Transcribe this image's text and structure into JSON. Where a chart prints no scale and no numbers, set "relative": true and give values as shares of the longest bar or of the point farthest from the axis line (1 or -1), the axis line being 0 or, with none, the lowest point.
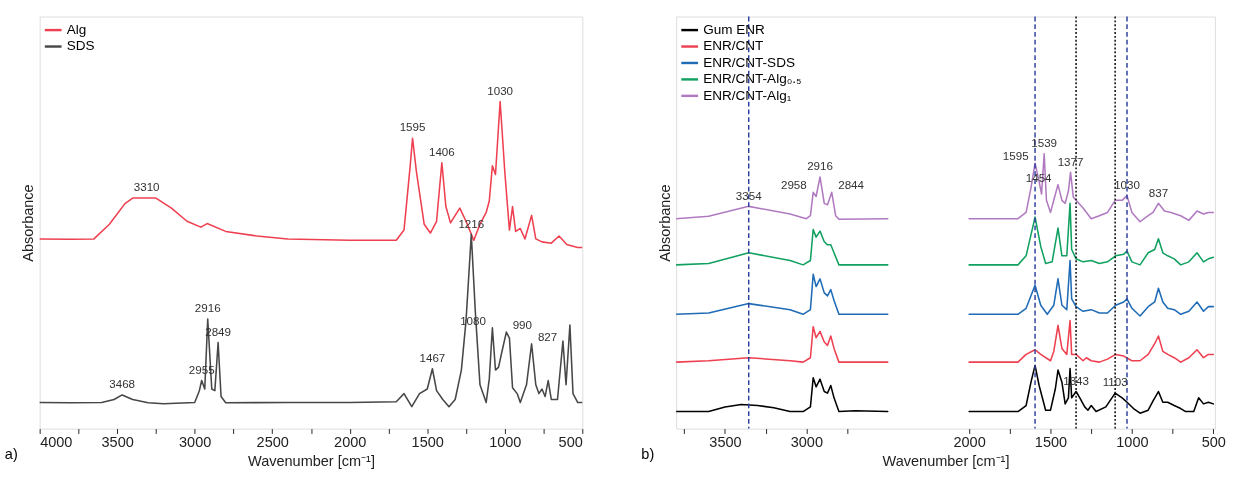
{
  "chart_data": [
    {
      "type": "line",
      "relative": true,
      "xlabel": "Wavenumber [cm⁻¹]",
      "ylabel": "Absorbance",
      "xlim": [
        4000,
        500
      ],
      "xticks": [
        4000,
        {
          "value": 3750,
          "label": null
        },
        3500,
        {
          "value": 3250,
          "label": null
        },
        3000,
        {
          "value": 2750,
          "label": null
        },
        2500,
        {
          "value": 2250,
          "label": null
        },
        2000,
        {
          "value": 1750,
          "label": null
        },
        1500,
        {
          "value": 1250,
          "label": null
        },
        1000,
        {
          "value": 750,
          "label": null
        },
        500
      ],
      "grid": false,
      "legend": "top left",
      "series": [
        {
          "name": "Alg",
          "color": "#ee4050",
          "x": [
            4000,
            3800,
            3650,
            3550,
            3450,
            3400,
            3250,
            3150,
            3050,
            2960,
            2920,
            2800,
            2600,
            2400,
            2000,
            1700,
            1650,
            1610,
            1595,
            1570,
            1520,
            1480,
            1440,
            1406,
            1380,
            1350,
            1320,
            1290,
            1250,
            1200,
            1160,
            1120,
            1100,
            1080,
            1060,
            1030,
            1000,
            970,
            950,
            930,
            900,
            870,
            827,
            800,
            760,
            700,
            650,
            600,
            530,
            500
          ],
          "values": [
            0.58,
            0.579,
            0.58,
            0.625,
            0.688,
            0.705,
            0.705,
            0.674,
            0.634,
            0.616,
            0.627,
            0.603,
            0.589,
            0.58,
            0.576,
            0.576,
            0.607,
            0.804,
            0.888,
            0.786,
            0.625,
            0.598,
            0.634,
            0.813,
            0.679,
            0.629,
            0.652,
            0.674,
            0.634,
            0.576,
            0.625,
            0.661,
            0.696,
            0.804,
            0.777,
            1.0,
            0.786,
            0.607,
            0.679,
            0.603,
            0.612,
            0.58,
            0.652,
            0.58,
            0.571,
            0.567,
            0.589,
            0.563,
            0.554,
            0.554
          ]
        },
        {
          "name": "SDS",
          "color": "#474747",
          "x": [
            4000,
            3800,
            3600,
            3520,
            3468,
            3400,
            3300,
            3200,
            3000,
            2970,
            2955,
            2935,
            2916,
            2890,
            2870,
            2849,
            2830,
            2800,
            2400,
            2000,
            1700,
            1650,
            1600,
            1550,
            1500,
            1467,
            1440,
            1400,
            1360,
            1320,
            1280,
            1250,
            1216,
            1190,
            1160,
            1120,
            1100,
            1080,
            1060,
            1040,
            1020,
            990,
            970,
            950,
            920,
            900,
            860,
            827,
            800,
            780,
            760,
            740,
            720,
            700,
            660,
            625,
            605,
            580,
            560,
            530,
            500
          ],
          "values": [
            0.08,
            0.079,
            0.08,
            0.089,
            0.103,
            0.089,
            0.079,
            0.076,
            0.08,
            0.116,
            0.147,
            0.121,
            0.335,
            0.121,
            0.116,
            0.263,
            0.098,
            0.079,
            0.08,
            0.08,
            0.082,
            0.107,
            0.067,
            0.107,
            0.121,
            0.183,
            0.116,
            0.089,
            0.067,
            0.089,
            0.179,
            0.33,
            0.594,
            0.357,
            0.134,
            0.08,
            0.152,
            0.308,
            0.179,
            0.188,
            0.232,
            0.295,
            0.277,
            0.125,
            0.107,
            0.08,
            0.134,
            0.259,
            0.134,
            0.107,
            0.121,
            0.098,
            0.147,
            0.089,
            0.089,
            0.268,
            0.134,
            0.317,
            0.107,
            0.08,
            0.08
          ]
        }
      ],
      "annotations": [
        {
          "text": "3310",
          "x": 3310,
          "y": 0.705
        },
        {
          "text": "2916",
          "x": 2916,
          "y": 0.335
        },
        {
          "text": "2849",
          "x": 2849,
          "y": 0.263
        },
        {
          "text": "2955",
          "x": 2955,
          "y": 0.147
        },
        {
          "text": "3468",
          "x": 3468,
          "y": 0.103
        },
        {
          "text": "1595",
          "x": 1595,
          "y": 0.888
        },
        {
          "text": "1406",
          "x": 1406,
          "y": 0.813
        },
        {
          "text": "1030",
          "x": 1030,
          "y": 1.0
        },
        {
          "text": "1216",
          "x": 1216,
          "y": 0.594
        },
        {
          "text": "1080",
          "x": 1080,
          "y": 0.308
        },
        {
          "text": "990",
          "x": 990,
          "y": 0.295
        },
        {
          "text": "827",
          "x": 827,
          "y": 0.259
        },
        {
          "text": "1467",
          "x": 1467,
          "y": 0.183
        },
        "a)"
      ]
    },
    {
      "type": "line",
      "relative": true,
      "xlabel": "Wavenumber [cm⁻¹]",
      "ylabel": "Absorbance",
      "xlim": [
        3800,
        490
      ],
      "xticks": [
        {
          "value": 3750,
          "label": null
        },
        3500,
        {
          "value": 3250,
          "label": null
        },
        3000,
        {
          "value": 2750,
          "label": null
        },
        2000,
        {
          "value": 1750,
          "label": null
        },
        1500,
        {
          "value": 1250,
          "label": null
        },
        1000,
        {
          "value": 750,
          "label": null
        },
        500
      ],
      "grid": false,
      "legend": "top left",
      "series": [
        {
          "name": "Gum ENR",
          "color": "#000000",
          "x": [
            3800,
            3600,
            3500,
            3400,
            3300,
            3200,
            3100,
            3020,
            2975,
            2958,
            2940,
            2916,
            2890,
            2870,
            2850,
            2830,
            2800,
            2700,
            2500,
            2250,
            2000,
            1700,
            1650,
            1620,
            1595,
            1570,
            1530,
            1500,
            1470,
            1454,
            1430,
            1410,
            1390,
            1380,
            1370,
            1343,
            1320,
            1290,
            1270,
            1250,
            1220,
            1160,
            1103,
            1060,
            1030,
            990,
            950,
            900,
            870,
            837,
            810,
            780,
            740,
            700,
            670,
            620,
            590,
            560,
            530,
            500
          ],
          "values": [
            0.062,
            0.062,
            0.079,
            0.088,
            0.084,
            0.076,
            0.062,
            0.062,
            0.079,
            0.185,
            0.152,
            0.18,
            0.135,
            0.129,
            0.157,
            0.112,
            0.062,
            0.065,
            0.062,
            null,
            0.062,
            0.062,
            0.084,
            0.169,
            0.23,
            0.157,
            0.067,
            0.067,
            0.146,
            0.213,
            0.169,
            0.09,
            0.112,
            0.219,
            0.112,
            0.135,
            0.112,
            0.079,
            0.067,
            0.084,
            0.062,
            0.079,
            0.129,
            0.112,
            0.096,
            0.073,
            0.056,
            0.067,
            0.101,
            0.135,
            0.096,
            0.096,
            0.084,
            0.073,
            0.062,
            0.062,
            0.112,
            0.09,
            0.096,
            0.09
          ]
        },
        {
          "name": "ENR/CNT",
          "color": "#ee4050",
          "x": [
            3800,
            3600,
            3354,
            3100,
            3020,
            2975,
            2958,
            2940,
            2916,
            2890,
            2870,
            2850,
            2830,
            2800,
            2700,
            2500,
            2250,
            2000,
            1700,
            1650,
            1595,
            1560,
            1500,
            1480,
            1454,
            1430,
            1400,
            1380,
            1370,
            1343,
            1300,
            1280,
            1250,
            1200,
            1150,
            1100,
            1050,
            1000,
            950,
            900,
            860,
            837,
            810,
            780,
            740,
            700,
            650,
            600,
            560,
            530,
            500
          ],
          "values": [
            0.242,
            0.247,
            0.258,
            0.247,
            0.242,
            0.258,
            0.371,
            0.331,
            0.354,
            0.315,
            0.303,
            0.337,
            0.292,
            0.242,
            0.242,
            0.242,
            null,
            0.242,
            0.242,
            0.27,
            0.287,
            0.27,
            0.247,
            0.281,
            0.376,
            0.292,
            0.27,
            0.393,
            0.27,
            0.27,
            0.247,
            0.258,
            0.247,
            0.242,
            0.253,
            0.27,
            0.264,
            0.247,
            0.247,
            0.27,
            0.309,
            0.337,
            0.281,
            0.27,
            0.258,
            0.242,
            0.258,
            0.287,
            0.258,
            0.27,
            0.27
          ]
        },
        {
          "name": "ENR/CNT-SDS",
          "color": "#1f6bb5",
          "x": [
            3800,
            3600,
            3354,
            3100,
            3020,
            2975,
            2958,
            2940,
            2916,
            2890,
            2870,
            2850,
            2830,
            2800,
            2700,
            2500,
            2250,
            2000,
            1700,
            1650,
            1595,
            1560,
            1520,
            1480,
            1454,
            1430,
            1400,
            1380,
            1370,
            1343,
            1300,
            1250,
            1200,
            1150,
            1100,
            1050,
            1030,
            1000,
            950,
            900,
            860,
            837,
            810,
            780,
            740,
            700,
            650,
            600,
            560,
            530,
            500
          ],
          "values": [
            0.416,
            0.421,
            0.455,
            0.433,
            0.416,
            0.433,
            0.562,
            0.517,
            0.545,
            0.494,
            0.483,
            0.506,
            0.466,
            0.416,
            0.416,
            0.416,
            null,
            0.416,
            0.416,
            0.438,
            0.522,
            0.449,
            0.416,
            0.449,
            0.545,
            0.449,
            0.433,
            0.612,
            0.472,
            0.444,
            0.427,
            0.433,
            0.421,
            0.421,
            0.449,
            0.461,
            0.472,
            0.438,
            0.41,
            0.444,
            0.461,
            0.511,
            0.461,
            0.438,
            0.433,
            0.416,
            0.427,
            0.461,
            0.427,
            0.444,
            0.444
          ]
        },
        {
          "name": "ENR/CNT-Alg₀.₅",
          "color": "#10a060",
          "x": [
            3800,
            3600,
            3354,
            3100,
            3020,
            2975,
            2958,
            2940,
            2916,
            2890,
            2870,
            2850,
            2830,
            2800,
            2700,
            2500,
            2250,
            2000,
            1700,
            1650,
            1595,
            1560,
            1530,
            1490,
            1454,
            1430,
            1400,
            1380,
            1370,
            1343,
            1300,
            1250,
            1200,
            1150,
            1100,
            1050,
            1030,
            1000,
            950,
            900,
            860,
            837,
            810,
            780,
            740,
            700,
            650,
            600,
            560,
            530,
            500
          ],
          "values": [
            0.596,
            0.601,
            0.64,
            0.612,
            0.596,
            0.612,
            0.725,
            0.697,
            0.719,
            0.68,
            0.669,
            0.669,
            0.64,
            0.596,
            0.596,
            0.596,
            null,
            0.596,
            0.596,
            0.629,
            0.77,
            0.663,
            0.601,
            0.607,
            0.73,
            0.629,
            0.629,
            0.82,
            0.652,
            0.618,
            0.607,
            0.612,
            0.601,
            0.607,
            0.629,
            0.635,
            0.646,
            0.607,
            0.596,
            0.64,
            0.652,
            0.691,
            0.64,
            0.629,
            0.618,
            0.596,
            0.607,
            0.64,
            0.607,
            0.618,
            0.624
          ]
        },
        {
          "name": "ENR/CNT-Alg₁",
          "color": "#b07ac0",
          "x": [
            3800,
            3600,
            3354,
            3100,
            3000,
            2975,
            2958,
            2940,
            2916,
            2890,
            2870,
            2844,
            2820,
            2800,
            2500,
            2250,
            2000,
            1700,
            1650,
            1620,
            1595,
            1570,
            1555,
            1539,
            1525,
            1500,
            1480,
            1454,
            1430,
            1410,
            1390,
            1377,
            1360,
            1343,
            1300,
            1250,
            1200,
            1150,
            1103,
            1060,
            1030,
            1000,
            950,
            900,
            870,
            837,
            800,
            760,
            700,
            650,
            600,
            560,
            530,
            500
          ],
          "values": [
            0.764,
            0.773,
            0.809,
            0.781,
            0.764,
            0.775,
            0.86,
            0.845,
            0.916,
            0.82,
            0.815,
            0.86,
            0.775,
            0.762,
            0.764,
            null,
            0.764,
            0.764,
            0.787,
            0.876,
            0.966,
            0.899,
            0.854,
            1.0,
            0.831,
            0.787,
            0.831,
            0.888,
            0.831,
            0.82,
            0.865,
            0.933,
            0.843,
            0.831,
            0.803,
            0.764,
            0.775,
            0.787,
            0.831,
            0.831,
            0.848,
            0.787,
            0.753,
            0.775,
            0.787,
            0.82,
            0.792,
            0.787,
            0.775,
            0.758,
            0.792,
            0.781,
            0.787,
            0.787
          ]
        }
      ],
      "ref_lines": [
        {
          "axis": "x",
          "value": 3354,
          "color": "#2b3f9e",
          "line_style": "dashed"
        },
        {
          "axis": "x",
          "value": 1595,
          "color": "#2b3f9e",
          "line_style": "dashed"
        },
        {
          "axis": "x",
          "value": 1030,
          "color": "#2b3f9e",
          "line_style": "dashed"
        },
        {
          "axis": "x",
          "value": 1343,
          "color": "#000000",
          "line_style": "dotted"
        },
        {
          "axis": "x",
          "value": 1103,
          "color": "#000000",
          "line_style": "dotted"
        }
      ],
      "annotations": [
        {
          "text": "3354",
          "x": 3354,
          "y": 0.809
        },
        {
          "text": "2958",
          "x": 2958,
          "y": 0.86
        },
        {
          "text": "2916",
          "x": 2916,
          "y": 0.916
        },
        {
          "text": "2844",
          "x": 2844,
          "y": 0.86
        },
        {
          "text": "1595",
          "x": 1595,
          "y": 0.966
        },
        {
          "text": "1539",
          "x": 1539,
          "y": 1.0
        },
        {
          "text": "1454",
          "x": 1454,
          "y": 0.888
        },
        {
          "text": "1377",
          "x": 1377,
          "y": 0.933
        },
        {
          "text": "1030",
          "x": 1030,
          "y": 0.848
        },
        {
          "text": "837",
          "x": 837,
          "y": 0.82
        },
        {
          "text": "1343",
          "x": 1343,
          "y": 0.135
        },
        {
          "text": "1103",
          "x": 1103,
          "y": 0.129
        },
        "b)"
      ]
    }
  ]
}
